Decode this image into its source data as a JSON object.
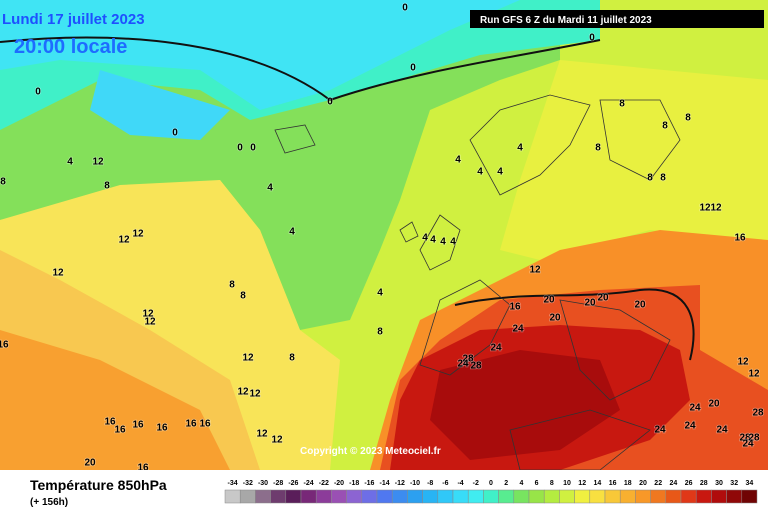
{
  "header": {
    "date": "Lundi 17 juillet 2023",
    "time": "20:00 locale",
    "run": "Run GFS 6 Z du Mardi 11 juillet 2023"
  },
  "copyright": "Copyright © 2023 Meteociel.fr",
  "footer": {
    "title": "Température 850hPa",
    "lead": "(+ 156h)"
  },
  "legend": {
    "values": [
      -34,
      -32,
      -30,
      -28,
      -26,
      -24,
      -22,
      -20,
      -18,
      -16,
      -14,
      -12,
      -10,
      -8,
      -6,
      -4,
      -2,
      0,
      2,
      4,
      6,
      8,
      10,
      12,
      14,
      16,
      18,
      20,
      22,
      24,
      26,
      28,
      30,
      32,
      34
    ],
    "colors": [
      "#c8c8c8",
      "#a8a8a8",
      "#8c6e8c",
      "#6e3c6e",
      "#5a1e5a",
      "#782878",
      "#8c3c9a",
      "#9a50b4",
      "#8c64d2",
      "#6e6ee6",
      "#5078f0",
      "#3c8cf0",
      "#2ca0f0",
      "#28b4f4",
      "#30c8f8",
      "#38dcf8",
      "#40ecf0",
      "#40f0c8",
      "#58ec90",
      "#78e460",
      "#98e448",
      "#b4ec40",
      "#d0f040",
      "#f0f040",
      "#f8e040",
      "#f8c838",
      "#f8b030",
      "#f89828",
      "#f07820",
      "#e85818",
      "#e03818",
      "#c81810",
      "#b00c0c",
      "#900808",
      "#700404"
    ]
  },
  "contour_labels": [
    0,
    0,
    0,
    0,
    0,
    0,
    0,
    0,
    4,
    12,
    8,
    8,
    4,
    4,
    4,
    4,
    4,
    4,
    4,
    4,
    4,
    4,
    8,
    8,
    8,
    8,
    8,
    8,
    12,
    12,
    12,
    12,
    12,
    16,
    12,
    8,
    8,
    12,
    12,
    4,
    8,
    8,
    12,
    12,
    12,
    12,
    12,
    16,
    16,
    20,
    20,
    20,
    20,
    20,
    24,
    24,
    28,
    24,
    28,
    12,
    12,
    24,
    20,
    24,
    24,
    24,
    28,
    28,
    28,
    24,
    16,
    16,
    16,
    16,
    16,
    16,
    20,
    16
  ]
}
